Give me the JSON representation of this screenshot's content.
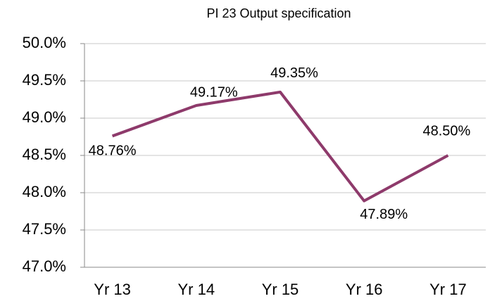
{
  "chart_data": {
    "type": "line",
    "title": "PI 23 Output specification",
    "categories": [
      "Yr 13",
      "Yr 14",
      "Yr 15",
      "Yr 16",
      "Yr 17"
    ],
    "series": [
      {
        "name": "PI 23",
        "color": "#8e3a6b",
        "values": [
          48.76,
          49.17,
          49.35,
          47.89,
          48.5
        ],
        "value_labels": [
          "48.76%",
          "49.17%",
          "49.35%",
          "47.89%",
          "48.50%"
        ]
      }
    ],
    "ylim": [
      47.0,
      50.0
    ],
    "yticks": [
      {
        "value": 47.0,
        "label": "47.0%"
      },
      {
        "value": 47.5,
        "label": "47.5%"
      },
      {
        "value": 48.0,
        "label": "48.0%"
      },
      {
        "value": 48.5,
        "label": "48.5%"
      },
      {
        "value": 49.0,
        "label": "49.0%"
      },
      {
        "value": 49.5,
        "label": "49.5%"
      },
      {
        "value": 50.0,
        "label": "50.0%"
      }
    ],
    "grid": true
  }
}
